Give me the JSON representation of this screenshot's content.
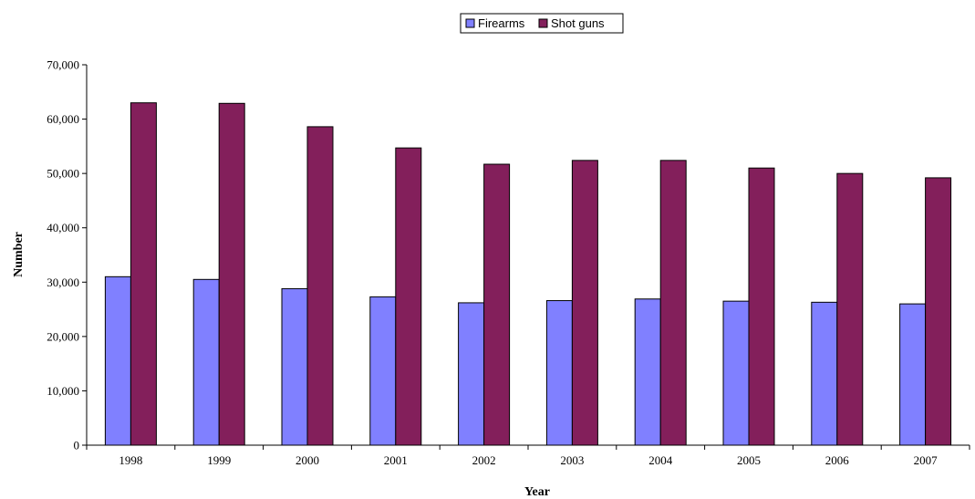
{
  "chart_data": {
    "type": "bar",
    "categories": [
      "1998",
      "1999",
      "2000",
      "2001",
      "2002",
      "2003",
      "2004",
      "2005",
      "2006",
      "2007"
    ],
    "series": [
      {
        "name": "Firearms",
        "color": "#8080ff",
        "values": [
          31000,
          30500,
          28800,
          27300,
          26200,
          26600,
          26900,
          26500,
          26300,
          26000
        ]
      },
      {
        "name": "Shot guns",
        "color": "#831f5b",
        "values": [
          63000,
          62900,
          58600,
          54700,
          51700,
          52400,
          52400,
          51000,
          50000,
          49200
        ]
      }
    ],
    "xlabel": "Year",
    "ylabel": "Number",
    "ylim": [
      0,
      70000
    ],
    "yticks": [
      0,
      10000,
      20000,
      30000,
      40000,
      50000,
      60000,
      70000
    ],
    "ytick_labels": [
      "0",
      "10,000",
      "20,000",
      "30,000",
      "40,000",
      "50,000",
      "60,000",
      "70,000"
    ],
    "grid": false,
    "legend_position": "top-center"
  }
}
